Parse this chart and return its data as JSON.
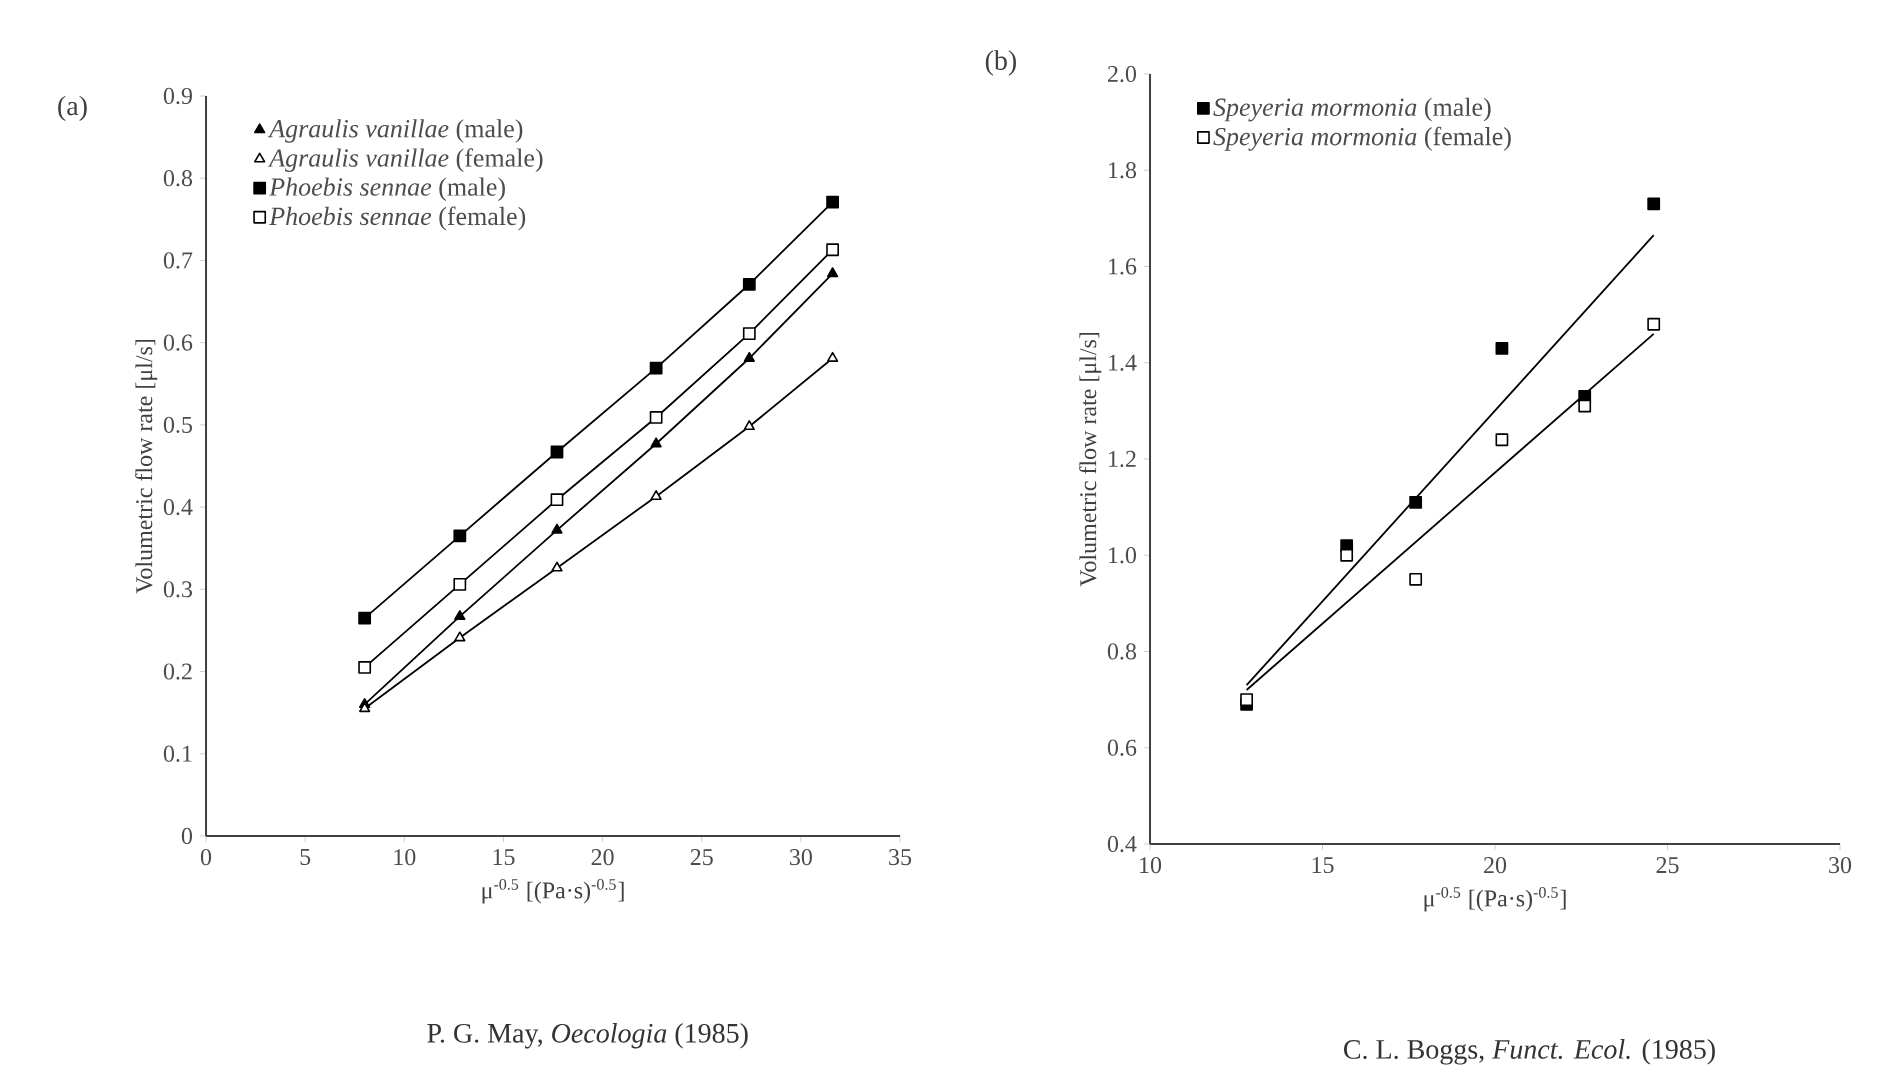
{
  "chart_data": [
    {
      "type": "line",
      "title": "(a)",
      "xlabel": "μ$^{-0.5}$ [(Pa·s)$^{-0.5}$]",
      "ylabel": "Volumetric flow rate [μl/s]",
      "x": [
        8.0,
        12.8,
        17.7,
        22.7,
        27.4,
        31.6
      ],
      "series": [
        {
          "name": "*Agraulis vanillae* (male)",
          "color": "#000000",
          "marker": "triangle",
          "values": [
            0.16,
            0.267,
            0.372,
            0.477,
            0.581,
            0.684
          ]
        },
        {
          "name": "*Agraulis vanillae* (female)",
          "color": "#ffffff",
          "marker": "triangle",
          "values": [
            0.155,
            0.241,
            0.326,
            0.413,
            0.498,
            0.581
          ]
        },
        {
          "name": "*Phoebis sennae* (male)",
          "color": "#000000",
          "marker": "square",
          "values": [
            0.265,
            0.365,
            0.467,
            0.569,
            0.671,
            0.771
          ]
        },
        {
          "name": "*Phoebis sennae* (female)",
          "color": "#ffffff",
          "marker": "square",
          "values": [
            0.205,
            0.306,
            0.409,
            0.509,
            0.611,
            0.713
          ]
        }
      ],
      "xlim": [
        0,
        35
      ],
      "xticks": [
        0,
        5,
        10,
        15,
        20,
        25,
        30,
        35
      ],
      "ylim": [
        0,
        0.9
      ],
      "yticks": [
        0,
        0.1,
        0.2,
        0.3,
        0.4,
        0.5,
        0.6,
        0.7,
        0.8,
        0.9
      ],
      "legend": "top left",
      "annotations": [
        "P. G. May, *Oecologia* (1985)"
      ]
    },
    {
      "type": "scatter",
      "title": "(b)",
      "xlabel": "μ$^{-0.5}$ [(Pa·s)$^{-0.5}$]",
      "ylabel": "Volumetric flow rate [μl/s]",
      "series": [
        {
          "name": "*Speyeria mormonia* (male)",
          "color": "#000000",
          "marker": "square",
          "x": [
            12.8,
            15.7,
            17.7,
            20.2,
            22.6,
            24.6
          ],
          "values": [
            0.69,
            1.02,
            1.11,
            1.43,
            1.33,
            1.73
          ]
        },
        {
          "name": "*Speyeria mormonia* (female)",
          "color": "#ffffff",
          "marker": "square",
          "x": [
            12.8,
            15.7,
            17.7,
            20.2,
            22.6,
            24.6
          ],
          "values": [
            0.7,
            1.0,
            0.95,
            1.24,
            1.31,
            1.48
          ]
        },
        {
          "type": "line",
          "color": "#000000",
          "marker": "none",
          "x": [
            12.8,
            24.6
          ],
          "values": [
            0.73,
            1.665
          ]
        },
        {
          "type": "line",
          "color": "#000000",
          "marker": "none",
          "x": [
            12.8,
            24.6
          ],
          "values": [
            0.72,
            1.46
          ]
        }
      ],
      "xlim": [
        10,
        30
      ],
      "xticks": [
        10,
        15,
        20,
        25,
        30
      ],
      "ylim": [
        0.4,
        2.0
      ],
      "yticks": [
        0.4,
        0.6,
        0.8,
        {
          "value": 1,
          "label": "1.0"
        },
        1.2,
        1.4,
        1.6,
        1.8,
        {
          "value": 2,
          "label": "2.0"
        }
      ],
      "legend": "top left",
      "annotations": [
        "C. L. Boggs, *Funct. Ecol.* (1985)"
      ]
    }
  ]
}
